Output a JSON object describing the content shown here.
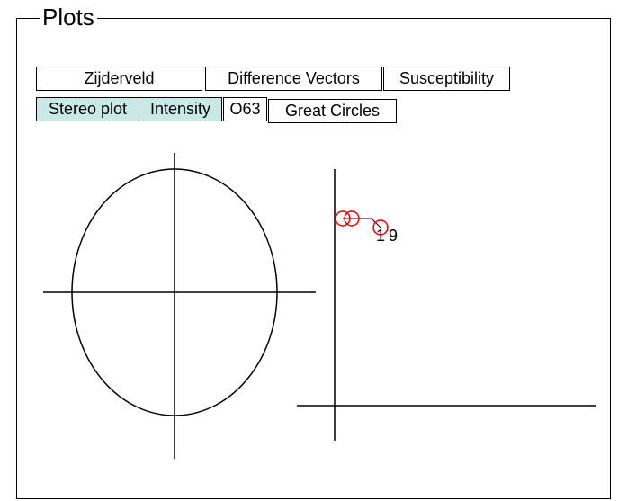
{
  "header": {
    "title": "Plots"
  },
  "buttons": [
    {
      "label": "Zijderveld",
      "active": false
    },
    {
      "label": "Difference Vectors",
      "active": false
    },
    {
      "label": "Susceptibility",
      "active": false
    },
    {
      "label": "Stereo plot",
      "active": true
    },
    {
      "label": "Intensity",
      "active": true
    },
    {
      "label": "O63",
      "active": false
    },
    {
      "label": "Great Circles",
      "active": false
    }
  ],
  "plot_labels": [
    "1",
    "9"
  ]
}
